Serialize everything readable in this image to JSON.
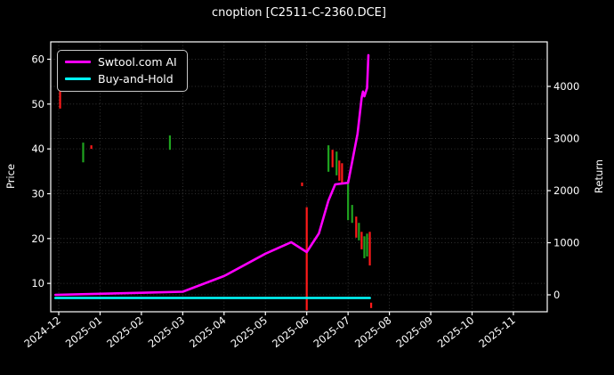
{
  "chart_data": {
    "type": "line",
    "subtype": "strategy-return-line-with-price-candlesticks",
    "title": "cnoption [C2511-C-2360.DCE]",
    "background_color": "#000000",
    "text_color": "#ffffff",
    "grid": true,
    "left_axis": {
      "label": "Price",
      "ticks": [
        10,
        20,
        30,
        40,
        50,
        60
      ],
      "range": [
        3.7,
        63.9
      ]
    },
    "right_axis": {
      "label": "Return",
      "ticks": [
        0,
        1000,
        2000,
        3000,
        4000
      ],
      "range": [
        -325,
        4855
      ]
    },
    "x_axis": {
      "tick_labels": [
        "2024-12",
        "2025-01",
        "2025-02",
        "2025-03",
        "2025-04",
        "2025-05",
        "2025-06",
        "2025-07",
        "2025-08",
        "2025-09",
        "2025-10",
        "2025-11"
      ],
      "label_rotation_deg": 38
    },
    "legend": {
      "position": "upper-left",
      "entries": [
        {
          "label": "Swtool.com AI",
          "color": "#ff00ff"
        },
        {
          "label": "Buy-and-Hold",
          "color": "#00ffff"
        }
      ]
    },
    "series": [
      {
        "name": "Swtool.com AI",
        "axis": "return",
        "color": "#ff00ff",
        "line_width": 2.6,
        "points": [
          [
            "2024-11-29",
            0
          ],
          [
            "2025-01-01",
            20
          ],
          [
            "2025-02-01",
            40
          ],
          [
            "2025-03-01",
            60
          ],
          [
            "2025-04-01",
            360
          ],
          [
            "2025-05-01",
            790
          ],
          [
            "2025-05-20",
            1010
          ],
          [
            "2025-06-01",
            820
          ],
          [
            "2025-06-10",
            1180
          ],
          [
            "2025-06-17",
            1810
          ],
          [
            "2025-06-22",
            2120
          ],
          [
            "2025-07-01",
            2150
          ],
          [
            "2025-07-08",
            3090
          ],
          [
            "2025-07-11",
            3780
          ],
          [
            "2025-07-12",
            3900
          ],
          [
            "2025-07-13",
            3810
          ],
          [
            "2025-07-15",
            3970
          ],
          [
            "2025-07-16",
            4600
          ]
        ]
      },
      {
        "name": "Buy-and-Hold",
        "axis": "return",
        "color": "#00ffff",
        "line_width": 2.6,
        "points": [
          [
            "2024-11-29",
            -60
          ],
          [
            "2025-07-17",
            -60
          ]
        ]
      }
    ],
    "candles": {
      "up_color": "#1fa31f",
      "down_color": "#ff1a1a",
      "bars": [
        {
          "date": "2024-12-02",
          "high": 53.0,
          "low": 49.0,
          "dir": "down"
        },
        {
          "date": "2024-12-19",
          "high": 41.4,
          "low": 37.0,
          "dir": "up"
        },
        {
          "date": "2024-12-25",
          "high": 40.8,
          "low": 40.0,
          "dir": "down"
        },
        {
          "date": "2025-02-22",
          "high": 43.0,
          "low": 39.8,
          "dir": "up"
        },
        {
          "date": "2025-05-28",
          "high": 32.5,
          "low": 31.7,
          "dir": "down"
        },
        {
          "date": "2025-06-01",
          "high": 27.0,
          "low": 4.0,
          "dir": "down"
        },
        {
          "date": "2025-06-17",
          "high": 40.8,
          "low": 34.9,
          "dir": "up"
        },
        {
          "date": "2025-06-20",
          "high": 39.8,
          "low": 35.9,
          "dir": "down"
        },
        {
          "date": "2025-06-23",
          "high": 39.4,
          "low": 34.1,
          "dir": "up"
        },
        {
          "date": "2025-06-25",
          "high": 37.4,
          "low": 32.9,
          "dir": "down"
        },
        {
          "date": "2025-06-27",
          "high": 36.8,
          "low": 32.1,
          "dir": "down"
        },
        {
          "date": "2025-07-01",
          "high": 33.1,
          "low": 24.1,
          "dir": "up"
        },
        {
          "date": "2025-07-04",
          "high": 27.5,
          "low": 23.5,
          "dir": "up"
        },
        {
          "date": "2025-07-07",
          "high": 24.9,
          "low": 20.2,
          "dir": "down"
        },
        {
          "date": "2025-07-09",
          "high": 23.5,
          "low": 19.6,
          "dir": "up"
        },
        {
          "date": "2025-07-11",
          "high": 21.5,
          "low": 17.6,
          "dir": "down"
        },
        {
          "date": "2025-07-13",
          "high": 20.5,
          "low": 15.6,
          "dir": "up"
        },
        {
          "date": "2025-07-15",
          "high": 21.1,
          "low": 16.0,
          "dir": "up"
        },
        {
          "date": "2025-07-17",
          "high": 21.5,
          "low": 14.0,
          "dir": "down"
        },
        {
          "date": "2025-07-18",
          "high": 5.7,
          "low": 4.5,
          "dir": "down"
        }
      ]
    }
  }
}
